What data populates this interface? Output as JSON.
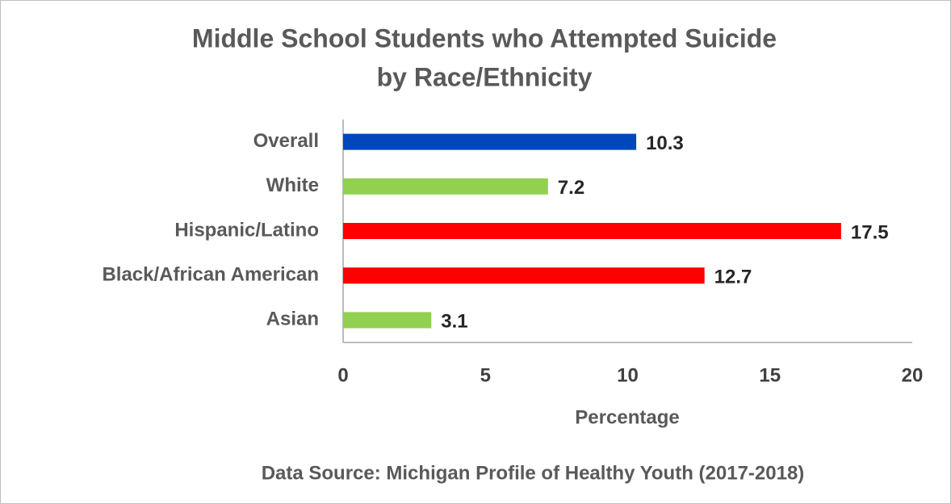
{
  "chart_data": {
    "type": "bar",
    "orientation": "horizontal",
    "title": [
      "Middle School Students who Attempted Suicide",
      "by Race/Ethnicity"
    ],
    "categories": [
      "Overall",
      "White",
      "Hispanic/Latino",
      "Black/African American",
      "Asian"
    ],
    "values": [
      10.3,
      7.2,
      17.5,
      12.7,
      3.1
    ],
    "colors": [
      "#0047bb",
      "#92d050",
      "#ff0000",
      "#ff0000",
      "#92d050"
    ],
    "xlim": [
      0,
      20
    ],
    "xticks": [
      0,
      5,
      10,
      15,
      20
    ],
    "xlabel": "Percentage",
    "source": "Data Source: Michigan Profile of Healthy Youth (2017-2018)",
    "grid": false
  }
}
